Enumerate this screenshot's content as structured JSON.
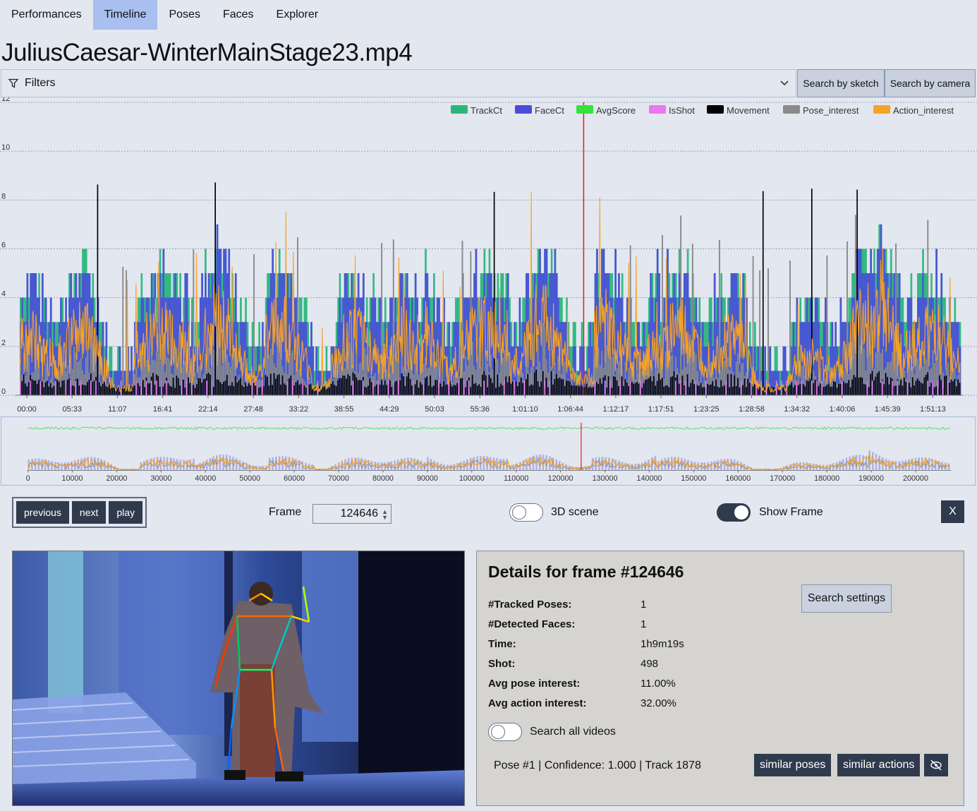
{
  "nav": {
    "tabs": [
      {
        "label": "Performances"
      },
      {
        "label": "Timeline",
        "active": true
      },
      {
        "label": "Poses"
      },
      {
        "label": "Faces"
      },
      {
        "label": "Explorer"
      }
    ]
  },
  "page_title": "JuliusCaesar-WinterMainStage23.mp4",
  "filters": {
    "label": "Filters"
  },
  "search_buttons": {
    "sketch": "Search by sketch",
    "camera": "Search by camera"
  },
  "chart_data": [
    {
      "type": "bar",
      "ylim": [
        0,
        12
      ],
      "y_ticks": [
        "0",
        "2",
        "4",
        "6",
        "8",
        "10",
        "12"
      ],
      "x_tick_labels": [
        "00:00",
        "05:33",
        "11:07",
        "16:41",
        "22:14",
        "27:48",
        "33:22",
        "38:55",
        "44:29",
        "50:03",
        "55:36",
        "1:01:10",
        "1:06:44",
        "1:12:17",
        "1:17:51",
        "1:23:25",
        "1:28:58",
        "1:34:32",
        "1:40:06",
        "1:45:39",
        "1:51:13"
      ],
      "legend_position": "top-right",
      "grid": true,
      "current_frame_marker": 124646,
      "series": [
        {
          "name": "TrackCt",
          "color": "#2bb67d"
        },
        {
          "name": "FaceCt",
          "color": "#4b4bdb"
        },
        {
          "name": "AvgScore",
          "color": "#33e23a"
        },
        {
          "name": "IsShot",
          "color": "#ee76ee"
        },
        {
          "name": "Movement",
          "color": "#000000"
        },
        {
          "name": "Pose_interest",
          "color": "#8a8a8a"
        },
        {
          "name": "Action_interest",
          "color": "#f7a325"
        }
      ]
    },
    {
      "type": "area",
      "x_ticks": [
        "0",
        "10000",
        "20000",
        "30000",
        "40000",
        "50000",
        "60000",
        "70000",
        "80000",
        "90000",
        "100000",
        "110000",
        "120000",
        "130000",
        "140000",
        "150000",
        "160000",
        "170000",
        "180000",
        "190000",
        "200000"
      ],
      "current_frame_marker": 124646
    }
  ],
  "controls": {
    "previous": "previous",
    "next": "next",
    "play": "play",
    "frame_label": "Frame",
    "frame_value": "124646",
    "scene3d_label": "3D scene",
    "scene3d_on": false,
    "show_frame_label": "Show Frame",
    "show_frame_on": true,
    "close": "X"
  },
  "details": {
    "title": "Details for frame #124646",
    "search_settings": "Search settings",
    "rows": [
      {
        "key": "#Tracked Poses:",
        "value": "1"
      },
      {
        "key": "#Detected Faces:",
        "value": "1"
      },
      {
        "key": "Time:",
        "value": "1h9m19s"
      },
      {
        "key": "Shot:",
        "value": "498"
      },
      {
        "key": "Avg pose interest:",
        "value": "11.00%"
      },
      {
        "key": "Avg action interest:",
        "value": "32.00%"
      }
    ],
    "search_all_label": "Search all videos",
    "search_all_on": false,
    "pose_line": "Pose #1 | Confidence: 1.000 | Track 1878",
    "similar_poses": "similar poses",
    "similar_actions": "similar actions",
    "hide_icon": "eye-slash-icon"
  }
}
